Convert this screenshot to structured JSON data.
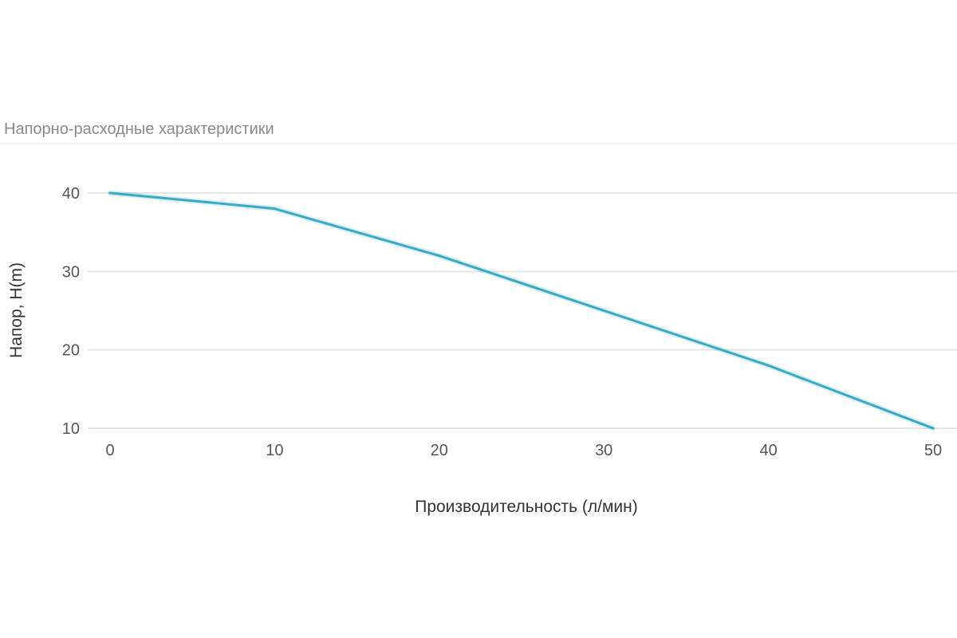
{
  "chart_data": {
    "type": "line",
    "title": "Напорно-расходные характеристики",
    "xlabel": "Производительность (л/мин)",
    "ylabel": "Напор, H(m)",
    "x": [
      0,
      10,
      20,
      30,
      40,
      50
    ],
    "series": [
      {
        "values": [
          40,
          38,
          32,
          25,
          18,
          10
        ]
      }
    ],
    "x_ticks": [
      "0",
      "10",
      "20",
      "30",
      "40",
      "50"
    ],
    "y_ticks": [
      "10",
      "20",
      "30",
      "40"
    ],
    "xlim": [
      0,
      50
    ],
    "ylim": [
      10,
      40
    ],
    "grid": true,
    "line_color": "#3aaac4"
  }
}
